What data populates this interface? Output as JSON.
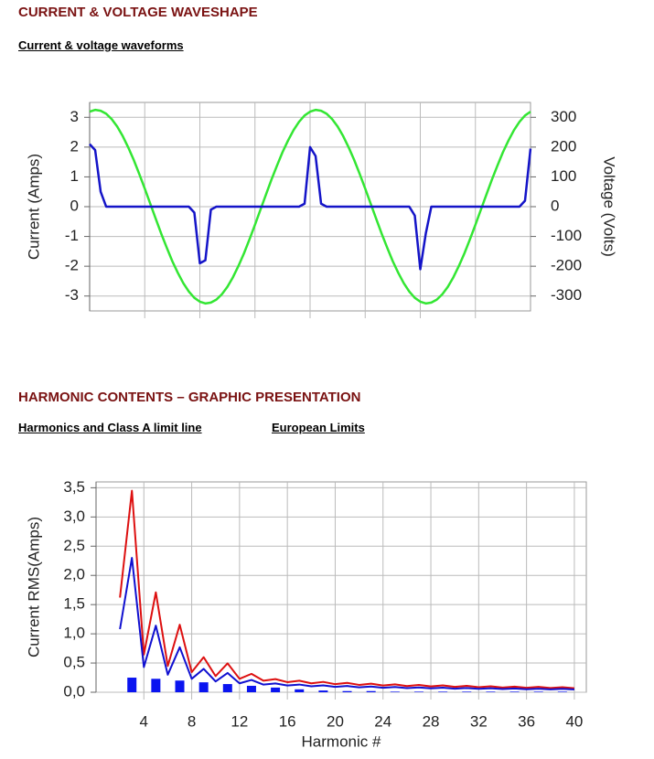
{
  "sections": [
    {
      "heading": "CURRENT & VOLTAGE WAVESHAPE",
      "links": [
        "Current & voltage waveforms"
      ]
    },
    {
      "heading": "HARMONIC CONTENTS – GRAPHIC PRESENTATION",
      "links": [
        "Harmonics and Class A limit line",
        "European Limits"
      ]
    }
  ],
  "chart_data": [
    {
      "type": "line",
      "ylabel": "Current (Amps)",
      "y2label": "Voltage (Volts)",
      "xlim": [
        0,
        40
      ],
      "xticks": [
        5,
        10,
        15,
        20,
        25,
        30,
        35
      ],
      "ylim": [
        -3.5,
        3.5
      ],
      "yticks": [
        3,
        2,
        1,
        0,
        -1,
        -2,
        -3
      ],
      "y2lim": [
        -350,
        350
      ],
      "y2ticks": [
        300,
        200,
        100,
        0,
        -100,
        -200,
        -300
      ],
      "grid": true,
      "x": [
        0,
        0.5,
        1,
        1.5,
        2,
        2.5,
        3,
        3.5,
        4,
        4.5,
        5,
        5.5,
        6,
        6.5,
        7,
        7.5,
        8,
        8.5,
        9,
        9.5,
        10,
        10.5,
        11,
        11.5,
        12,
        12.5,
        13,
        13.5,
        14,
        14.5,
        15,
        15.5,
        16,
        16.5,
        17,
        17.5,
        18,
        18.5,
        19,
        19.5,
        20,
        20.5,
        21,
        21.5,
        22,
        22.5,
        23,
        23.5,
        24,
        24.5,
        25,
        25.5,
        26,
        26.5,
        27,
        27.5,
        28,
        28.5,
        29,
        29.5,
        30,
        30.5,
        31,
        31.5,
        32,
        32.5,
        33,
        33.5,
        34,
        34.5,
        35,
        35.5,
        36,
        36.5,
        37,
        37.5,
        38,
        38.5,
        39,
        39.5,
        40
      ],
      "series": [
        {
          "axis": "y2",
          "color": "#33e633",
          "values": [
            319,
            325,
            322,
            312,
            294,
            269,
            237,
            199,
            157,
            110,
            61,
            10,
            -41,
            -91,
            -138,
            -183,
            -222,
            -257,
            -285,
            -306,
            -319,
            -325,
            -322,
            -312,
            -294,
            -269,
            -237,
            -199,
            -157,
            -110,
            -61,
            -10,
            41,
            91,
            138,
            183,
            222,
            257,
            285,
            306,
            319,
            325,
            322,
            312,
            294,
            269,
            237,
            199,
            157,
            110,
            61,
            10,
            -41,
            -91,
            -138,
            -183,
            -222,
            -257,
            -285,
            -306,
            -319,
            -325,
            -322,
            -312,
            -294,
            -269,
            -237,
            -199,
            -157,
            -110,
            -61,
            -10,
            41,
            91,
            138,
            183,
            222,
            257,
            285,
            306,
            319
          ]
        },
        {
          "axis": "y",
          "color": "#1414c8",
          "values": [
            2.1,
            1.9,
            0.5,
            0,
            0,
            0,
            0,
            0,
            0,
            0,
            0,
            0,
            0,
            0,
            0,
            0,
            0,
            0,
            0,
            -0.2,
            -1.9,
            -1.8,
            -0.1,
            0,
            0,
            0,
            0,
            0,
            0,
            0,
            0,
            0,
            0,
            0,
            0,
            0,
            0,
            0,
            0,
            0.1,
            2.0,
            1.7,
            0.1,
            0,
            0,
            0,
            0,
            0,
            0,
            0,
            0,
            0,
            0,
            0,
            0,
            0,
            0,
            0,
            0,
            -0.3,
            -2.1,
            -0.9,
            0,
            0,
            0,
            0,
            0,
            0,
            0,
            0,
            0,
            0,
            0,
            0,
            0,
            0,
            0,
            0,
            0,
            0.2,
            1.95
          ]
        }
      ]
    },
    {
      "type": "line",
      "ylabel": "Current RMS(Amps)",
      "xlabel": "Harmonic #",
      "xlim": [
        0,
        41
      ],
      "xticks": [
        4,
        8,
        12,
        16,
        20,
        24,
        28,
        32,
        36,
        40
      ],
      "ylim": [
        0,
        3.6
      ],
      "yticks": [
        {
          "value": 0,
          "label": "0,0"
        },
        {
          "value": 0.5,
          "label": "0,5"
        },
        {
          "value": 1,
          "label": "1,0"
        },
        {
          "value": 1.5,
          "label": "1,5"
        },
        {
          "value": 2,
          "label": "2,0"
        },
        {
          "value": 2.5,
          "label": "2,5"
        },
        {
          "value": 3,
          "label": "3,0"
        },
        {
          "value": 3.5,
          "label": "3,5"
        }
      ],
      "grid": true,
      "x": [
        2,
        3,
        4,
        5,
        6,
        7,
        8,
        9,
        10,
        11,
        12,
        13,
        14,
        15,
        16,
        17,
        18,
        19,
        20,
        21,
        22,
        23,
        24,
        25,
        26,
        27,
        28,
        29,
        30,
        31,
        32,
        33,
        34,
        35,
        36,
        37,
        38,
        39,
        40
      ],
      "series": [
        {
          "color": "#dd1010",
          "values": [
            1.62,
            3.45,
            0.645,
            1.71,
            0.45,
            1.155,
            0.345,
            0.6,
            0.276,
            0.495,
            0.23,
            0.315,
            0.197,
            0.225,
            0.173,
            0.198,
            0.153,
            0.177,
            0.138,
            0.161,
            0.126,
            0.147,
            0.115,
            0.135,
            0.106,
            0.125,
            0.099,
            0.117,
            0.092,
            0.11,
            0.087,
            0.102,
            0.081,
            0.096,
            0.077,
            0.092,
            0.073,
            0.087,
            0.069
          ]
        },
        {
          "color": "#1010d0",
          "values": [
            1.08,
            2.3,
            0.43,
            1.14,
            0.3,
            0.77,
            0.23,
            0.4,
            0.184,
            0.33,
            0.153,
            0.21,
            0.131,
            0.15,
            0.115,
            0.132,
            0.102,
            0.118,
            0.092,
            0.107,
            0.084,
            0.098,
            0.077,
            0.09,
            0.071,
            0.083,
            0.066,
            0.078,
            0.061,
            0.073,
            0.058,
            0.068,
            0.054,
            0.064,
            0.051,
            0.061,
            0.048,
            0.058,
            0.046
          ]
        },
        {
          "type": "bar",
          "color": "#0a14f0",
          "x": [
            3,
            5,
            7,
            9,
            11,
            13,
            15,
            17,
            19,
            21,
            23,
            25,
            27,
            29,
            31,
            33,
            35,
            37,
            39
          ],
          "values": [
            0.25,
            0.23,
            0.2,
            0.17,
            0.14,
            0.11,
            0.08,
            0.05,
            0.03,
            0.02,
            0.02,
            0.01,
            0.01,
            0.01,
            0.01,
            0.01,
            0.01,
            0.01,
            0.01
          ]
        }
      ]
    }
  ]
}
